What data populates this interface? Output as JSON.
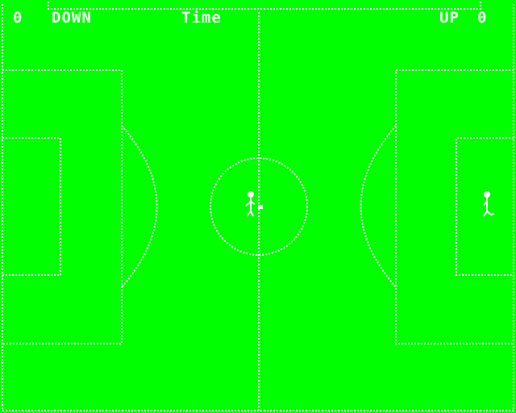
{
  "hud": {
    "left_score": "0",
    "left_team": "DOWN",
    "timer_label": "Time",
    "right_team": "UP",
    "right_score": "0"
  },
  "colors": {
    "pitch": "#00ff00",
    "lines": "#ffffff"
  },
  "players": [
    {
      "team": "DOWN",
      "name": "player-down-icon"
    },
    {
      "team": "UP",
      "name": "player-up-icon"
    }
  ],
  "ball": {
    "name": "ball-icon"
  }
}
